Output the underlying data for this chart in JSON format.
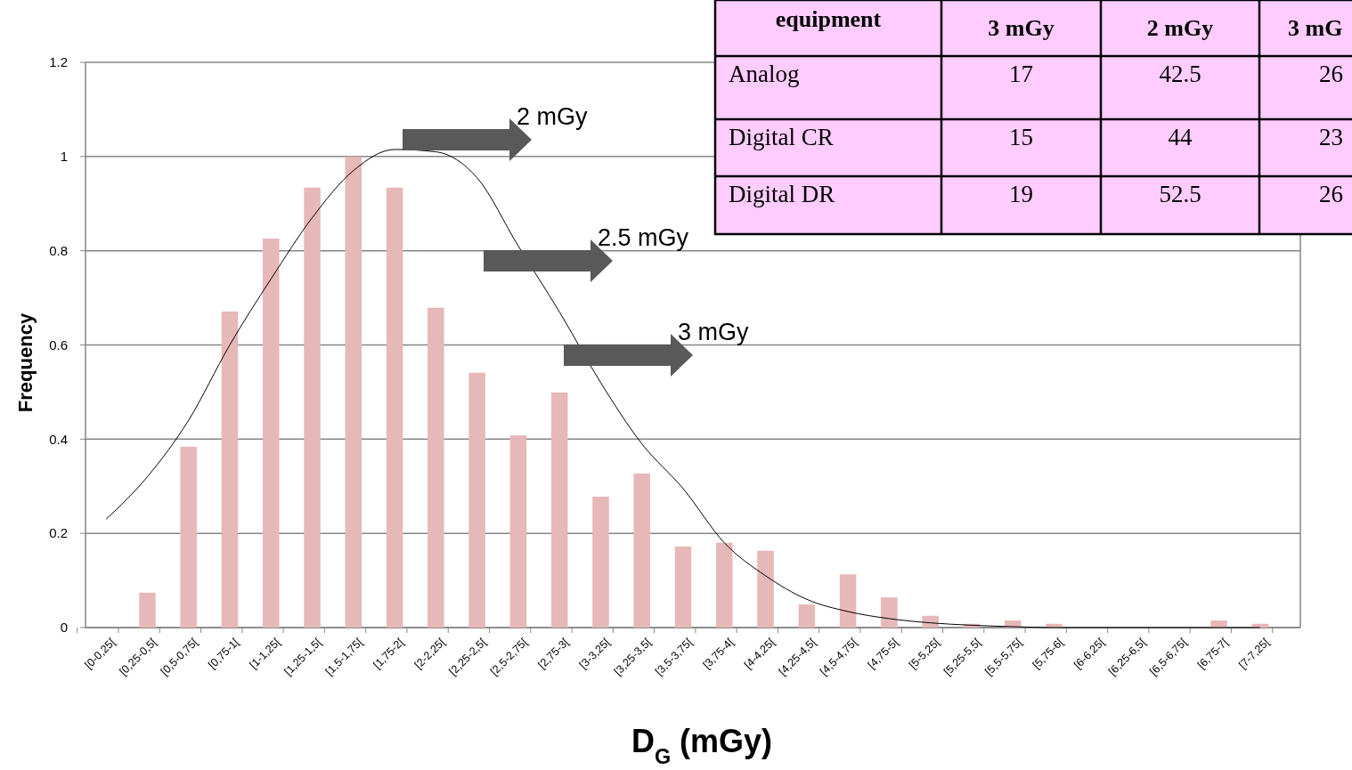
{
  "chart_data": [
    {
      "type": "bar",
      "xlabel": "D$_{G}$ (mGy)",
      "ylabel": "Frequency",
      "categories": [
        "[0-0,25[",
        "[0,25-0,5[",
        "[0,5-0,75[",
        "[0,75-1[",
        "[1-1,25[",
        "[1,25-1,5[",
        "[1,5-1,75[",
        "[1,75-2[",
        "[2-2,25[",
        "[2,25-2,5[",
        "[2,5-2,75[",
        "[2,75-3[",
        "[3-3,25[",
        "[3,25-3,5[",
        "[3,5-3,75[",
        "[3,75-4[",
        "[4-4,25[",
        "[4,25-4,5[",
        "[4,5-4,75[",
        "[4,75-5[",
        "[5-5,25[",
        "[5,25-5,5[",
        "[5,5-5,75[",
        "[5,75-6[",
        "[6-6,25[",
        "[6,25-6,5[",
        "[6,5-6,75[",
        "[6,75-7[",
        "[7-7,25["
      ],
      "series": [
        {
          "type": "bar",
          "color": "#e6b8b7",
          "values": [
            0,
            0.074,
            0.384,
            0.671,
            0.826,
            0.934,
            1.0,
            0.934,
            0.679,
            0.541,
            0.408,
            0.499,
            0.278,
            0.327,
            0.172,
            0.18,
            0.163,
            0.049,
            0.113,
            0.064,
            0.025,
            0.008,
            0.015,
            0.008,
            0,
            0,
            0,
            0.015,
            0.008
          ]
        },
        {
          "type": "line",
          "color": "#000000",
          "values": [
            0.23,
            0.32,
            0.44,
            0.6,
            0.74,
            0.87,
            0.97,
            1.015,
            1.01,
            0.955,
            0.81,
            0.67,
            0.52,
            0.39,
            0.295,
            0.18,
            0.11,
            0.06,
            0.034,
            0.019,
            0.01,
            0.005,
            0.002,
            0,
            0,
            0,
            0,
            0,
            0
          ]
        }
      ],
      "ylim": [
        0,
        1.2
      ],
      "yticks": [
        0,
        0.2,
        0.4,
        0.6,
        0.8,
        1,
        1.2
      ],
      "grid": "y",
      "annotations": [
        "2 mGy",
        "2.5 mGy",
        "3 mGy"
      ]
    },
    {
      "type": "other",
      "annotations": [
        "equipment",
        "3 mGy",
        "2 mGy",
        "3 mG",
        "Analog",
        "17",
        "42.5",
        "26",
        "Digital CR",
        "15",
        "44",
        "23",
        "Digital DR",
        "19",
        "52.5",
        "26"
      ]
    }
  ]
}
